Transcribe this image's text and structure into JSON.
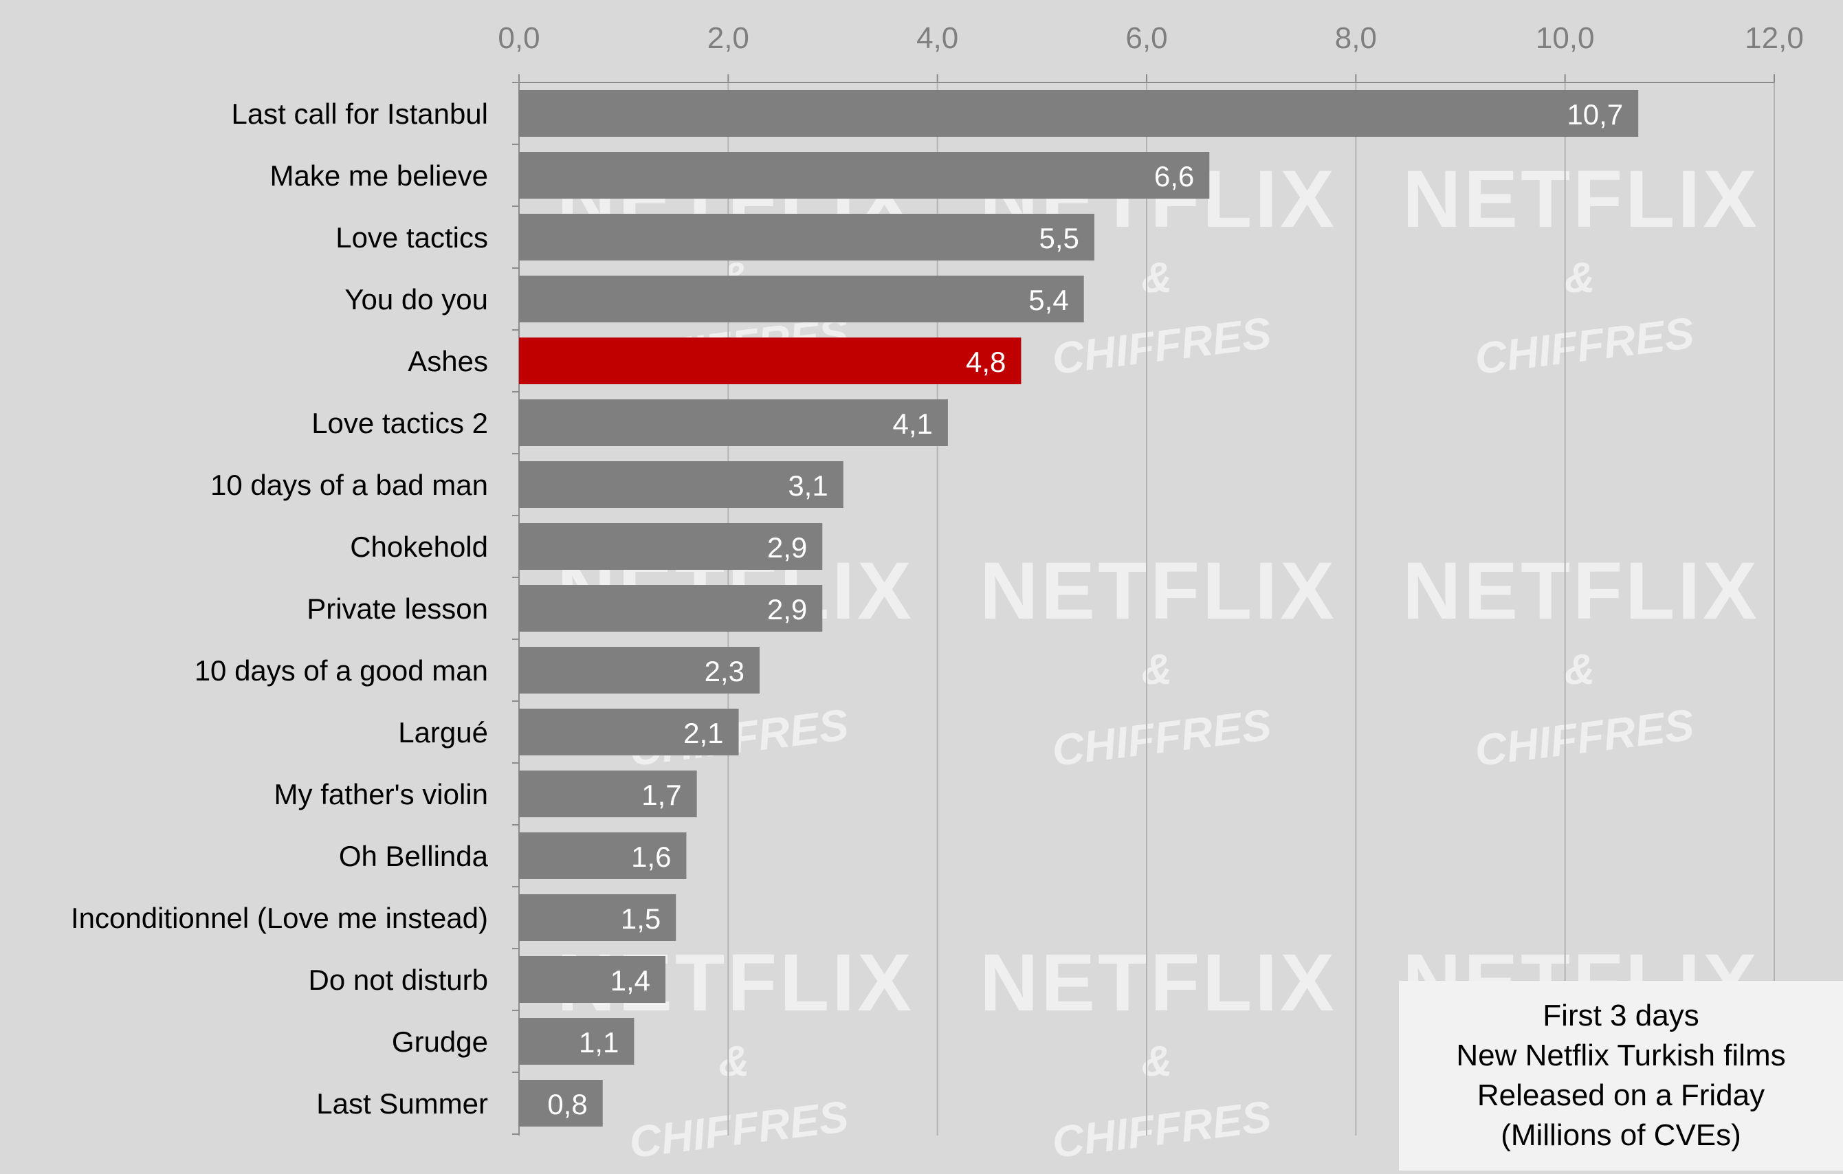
{
  "chart_data": {
    "type": "bar",
    "orientation": "horizontal",
    "categories": [
      "Last call for Istanbul",
      "Make me believe",
      "Love tactics",
      "You do you",
      "Ashes",
      "Love tactics 2",
      "10 days of a bad man",
      "Chokehold",
      "Private lesson",
      "10 days of a good man",
      "Largué",
      "My father's violin",
      "Oh Bellinda",
      "Inconditionnel (Love me instead)",
      "Do not disturb",
      "Grudge",
      "Last Summer"
    ],
    "values": [
      10.7,
      6.6,
      5.5,
      5.4,
      4.8,
      4.1,
      3.1,
      2.9,
      2.9,
      2.3,
      2.1,
      1.7,
      1.6,
      1.5,
      1.4,
      1.1,
      0.8
    ],
    "value_labels": [
      "10,7",
      "6,6",
      "5,5",
      "5,4",
      "4,8",
      "4,1",
      "3,1",
      "2,9",
      "2,9",
      "2,3",
      "2,1",
      "1,7",
      "1,6",
      "1,5",
      "1,4",
      "1,1",
      "0,8"
    ],
    "highlight_category": "Ashes",
    "xlim": [
      0,
      12
    ],
    "x_ticks": [
      0,
      2,
      4,
      6,
      8,
      10,
      12
    ],
    "x_tick_labels": [
      "0,0",
      "2,0",
      "4,0",
      "6,0",
      "8,0",
      "10,0",
      "12,0"
    ],
    "x_axis_position": "top",
    "grid": true,
    "legend_placement": "bottom-right",
    "colors": {
      "bar": "#7f7f7f",
      "highlight": "#c00000",
      "background": "#d9d9d9",
      "grid": "#b3b3b3"
    }
  },
  "legend_box": {
    "lines": [
      "First 3 days",
      "New Netflix Turkish films",
      "Released on a Friday",
      "(Millions of CVEs)"
    ]
  },
  "watermark": {
    "title": "NETFLIX",
    "amp": "&",
    "sub": "CHIFFRES"
  }
}
